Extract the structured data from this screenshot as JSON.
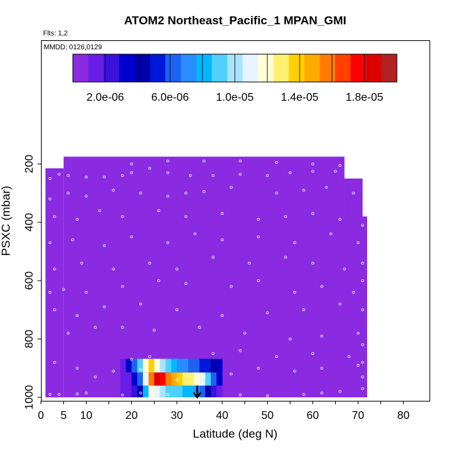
{
  "chart_data": {
    "type": "heatmap",
    "title": "ATOM2 Northeast_Pacific_1 MPAN_GMI",
    "flights_label": "Flts: 1,2",
    "dates_label": "MMDD: 0126,0129",
    "xlabel": "Latitude (deg N)",
    "ylabel": "PSXC (mbar)",
    "xlim": [
      0,
      85
    ],
    "ylim": [
      1000,
      50
    ],
    "x_reverse": false,
    "y_reverse": true,
    "x_ticks": [
      0,
      5,
      10,
      20,
      30,
      40,
      50,
      60,
      70,
      80
    ],
    "x_minor_ticks": [
      15,
      25,
      35,
      45,
      55,
      65,
      75
    ],
    "y_ticks": [
      200,
      400,
      600,
      800,
      1000
    ],
    "colorbar": {
      "min": 0,
      "max": 2e-05,
      "tick_values": [
        2e-06,
        6e-06,
        1e-05,
        1.4e-05,
        1.8e-05
      ],
      "tick_labels": [
        "2.0e-06",
        "6.0e-06",
        "1.0e-05",
        "1.4e-05",
        "1.8e-05"
      ],
      "colors": [
        "#8a2be2",
        "#6a1de6",
        "#3a12dc",
        "#0000cd",
        "#0000a8",
        "#0018d8",
        "#1d62f0",
        "#2b8cff",
        "#00b8ff",
        "#4fd0ff",
        "#a8e4ff",
        "#e8f4ff",
        "#ffffd8",
        "#fff070",
        "#ffd000",
        "#ffaa00",
        "#ff7c00",
        "#ff4000",
        "#ff0000",
        "#dd0000",
        "#b22222"
      ]
    },
    "background_value": 9e-07,
    "cells": [
      {
        "x0": 5,
        "x1": 67,
        "p0": 175,
        "p1": 1000,
        "v": 9e-07
      },
      {
        "x0": 1,
        "x1": 5,
        "p0": 215,
        "p1": 1000,
        "v": 9e-07
      },
      {
        "x0": 67,
        "x1": 71,
        "p0": 250,
        "p1": 1000,
        "v": 9e-07
      },
      {
        "x0": 50,
        "x1": 60,
        "p0": 280,
        "p1": 420,
        "v": 8e-07
      },
      {
        "x0": 60,
        "x1": 72,
        "p0": 380,
        "p1": 1000,
        "v": 7e-07
      },
      {
        "x0": 33,
        "x1": 48,
        "p0": 480,
        "p1": 680,
        "v": 8e-07
      },
      {
        "x0": 50,
        "x1": 60,
        "p0": 720,
        "p1": 820,
        "v": 8e-07
      },
      {
        "x0": 8,
        "x1": 38,
        "p0": 840,
        "p1": 880,
        "v": 7.5e-07
      },
      {
        "x0": 14,
        "x1": 45,
        "p0": 930,
        "p1": 1000,
        "v": 6e-07
      }
    ],
    "plume": {
      "x_start": 17.5,
      "x_end": 40.0,
      "p_top": 868,
      "p_bottom": 1000,
      "rows": [
        {
          "p0": 868,
          "p1": 915,
          "values": [
            1.8e-06,
            3e-06,
            6e-06,
            9e-06,
            1.2e-05,
            1.4e-05,
            1.2e-05,
            1e-05,
            9e-06,
            8e-06,
            7.5e-06,
            7e-06,
            6.5e-06,
            6e-06,
            5.5e-06,
            5e-06,
            4e-06,
            3e-06
          ]
        },
        {
          "p0": 915,
          "p1": 960,
          "values": [
            1.2e-06,
            1.8e-06,
            3.5e-06,
            6e-06,
            1.1e-05,
            1.6e-05,
            1.9e-05,
            1.75e-05,
            1.6e-05,
            1.45e-05,
            1.35e-05,
            1.3e-05,
            1.25e-05,
            1.2e-05,
            1.1e-05,
            9e-06,
            6e-06,
            3e-06
          ]
        },
        {
          "p0": 960,
          "p1": 1000,
          "values": [
            1e-06,
            1.4e-06,
            2e-06,
            4e-06,
            8e-06,
            1.2e-05,
            1.1e-05,
            1e-05,
            9.5e-06,
            9e-06,
            9e-06,
            8.5e-06,
            8e-06,
            7e-06,
            6e-06,
            4e-06,
            2.5e-06,
            1.5e-06
          ]
        }
      ]
    },
    "flight_points": [
      [
        2,
        990
      ],
      [
        4,
        990
      ],
      [
        8,
        988
      ],
      [
        10,
        985
      ],
      [
        18,
        992
      ],
      [
        22,
        985
      ],
      [
        28,
        990
      ],
      [
        34,
        988
      ],
      [
        44,
        992
      ],
      [
        50,
        995
      ],
      [
        58,
        990
      ],
      [
        62,
        985
      ],
      [
        66,
        980
      ],
      [
        71,
        970
      ],
      [
        12,
        930
      ],
      [
        16,
        910
      ],
      [
        22,
        905
      ],
      [
        30,
        940
      ],
      [
        36,
        930
      ],
      [
        42,
        920
      ],
      [
        48,
        900
      ],
      [
        56,
        910
      ],
      [
        62,
        900
      ],
      [
        70,
        890
      ],
      [
        71,
        930
      ],
      [
        3,
        880
      ],
      [
        8,
        900
      ],
      [
        20,
        870
      ],
      [
        24,
        860
      ],
      [
        38,
        850
      ],
      [
        44,
        840
      ],
      [
        52,
        860
      ],
      [
        60,
        850
      ],
      [
        68,
        860
      ],
      [
        71,
        880
      ],
      [
        6,
        780
      ],
      [
        12,
        760
      ],
      [
        18,
        760
      ],
      [
        25,
        770
      ],
      [
        35,
        760
      ],
      [
        45,
        780
      ],
      [
        55,
        800
      ],
      [
        62,
        790
      ],
      [
        70,
        780
      ],
      [
        71,
        820
      ],
      [
        3,
        700
      ],
      [
        8,
        720
      ],
      [
        14,
        690
      ],
      [
        22,
        680
      ],
      [
        30,
        700
      ],
      [
        40,
        720
      ],
      [
        50,
        710
      ],
      [
        58,
        700
      ],
      [
        66,
        680
      ],
      [
        71,
        700
      ],
      [
        2,
        640
      ],
      [
        5,
        630
      ],
      [
        10,
        640
      ],
      [
        18,
        620
      ],
      [
        26,
        600
      ],
      [
        32,
        610
      ],
      [
        42,
        620
      ],
      [
        48,
        600
      ],
      [
        56,
        640
      ],
      [
        62,
        620
      ],
      [
        69,
        640
      ],
      [
        71,
        600
      ],
      [
        3,
        560
      ],
      [
        9,
        540
      ],
      [
        16,
        560
      ],
      [
        24,
        540
      ],
      [
        30,
        560
      ],
      [
        38,
        520
      ],
      [
        46,
        540
      ],
      [
        54,
        520
      ],
      [
        60,
        540
      ],
      [
        67,
        560
      ],
      [
        71,
        540
      ],
      [
        2,
        470
      ],
      [
        7,
        460
      ],
      [
        14,
        480
      ],
      [
        20,
        450
      ],
      [
        28,
        470
      ],
      [
        34,
        440
      ],
      [
        40,
        460
      ],
      [
        48,
        450
      ],
      [
        56,
        470
      ],
      [
        64,
        440
      ],
      [
        70,
        470
      ],
      [
        3,
        380
      ],
      [
        8,
        390
      ],
      [
        13,
        360
      ],
      [
        18,
        380
      ],
      [
        26,
        360
      ],
      [
        32,
        380
      ],
      [
        40,
        370
      ],
      [
        48,
        390
      ],
      [
        54,
        380
      ],
      [
        60,
        370
      ],
      [
        66,
        390
      ],
      [
        71,
        410
      ],
      [
        2,
        320
      ],
      [
        6,
        300
      ],
      [
        10,
        310
      ],
      [
        16,
        290
      ],
      [
        22,
        300
      ],
      [
        28,
        310
      ],
      [
        32,
        300
      ],
      [
        36,
        295
      ],
      [
        42,
        280
      ],
      [
        52,
        300
      ],
      [
        58,
        290
      ],
      [
        63,
        280
      ],
      [
        69,
        300
      ],
      [
        2,
        250
      ],
      [
        4,
        235
      ],
      [
        6,
        240
      ],
      [
        10,
        245
      ],
      [
        14,
        245
      ],
      [
        18,
        240
      ],
      [
        20,
        230
      ],
      [
        24,
        215
      ],
      [
        28,
        230
      ],
      [
        33,
        240
      ],
      [
        38,
        240
      ],
      [
        44,
        235
      ],
      [
        50,
        240
      ],
      [
        55,
        230
      ],
      [
        60,
        225
      ],
      [
        65,
        225
      ],
      [
        68,
        230
      ],
      [
        20,
        200
      ],
      [
        28,
        190
      ],
      [
        36,
        190
      ],
      [
        44,
        190
      ],
      [
        52,
        195
      ],
      [
        60,
        200
      ],
      [
        66,
        205
      ]
    ],
    "marker": {
      "x": 34.5,
      "p0": 960,
      "p1": 1000
    }
  }
}
